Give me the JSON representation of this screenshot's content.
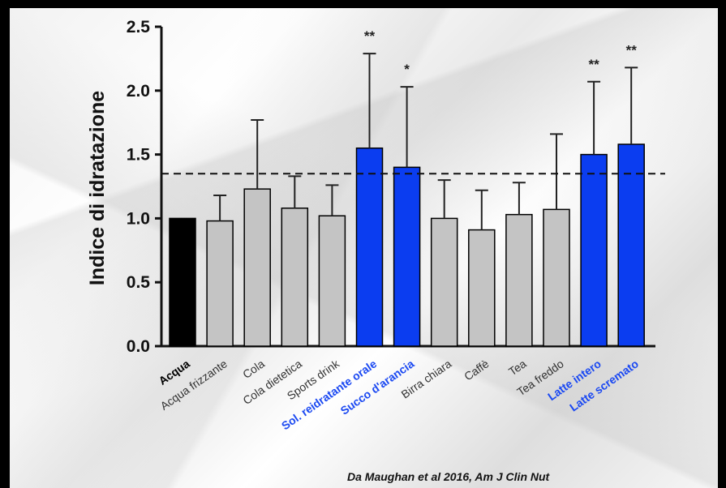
{
  "chart_data": {
    "type": "bar",
    "ylabel": "Indice di idratazione",
    "ylim": [
      0,
      2.5
    ],
    "yticks": [
      "0.0",
      "0.5",
      "1.0",
      "1.5",
      "2.0",
      "2.5"
    ],
    "reference_line": 1.35,
    "categories": [
      "Acqua",
      "Acqua frizzante",
      "Cola",
      "Cola dietetica",
      "Sports drink",
      "Sol. reidratante orale",
      "Succo d'arancia",
      "Birra chiara",
      "Caffè",
      "Tea",
      "Tea freddo",
      "Latte intero",
      "Latte scremato"
    ],
    "values": [
      1.0,
      0.98,
      1.23,
      1.08,
      1.02,
      1.55,
      1.4,
      1.0,
      0.91,
      1.03,
      1.07,
      1.5,
      1.58
    ],
    "error_upper": [
      1.0,
      1.18,
      1.77,
      1.33,
      1.26,
      2.29,
      2.03,
      1.3,
      1.22,
      1.28,
      1.66,
      2.07,
      2.18
    ],
    "significance": [
      "",
      "",
      "",
      "",
      "",
      "**",
      "*",
      "",
      "",
      "",
      "",
      "**",
      "**"
    ],
    "bar_colors": [
      "#000000",
      "#c4c4c4",
      "#c4c4c4",
      "#c4c4c4",
      "#c4c4c4",
      "#0b3df0",
      "#0b3df0",
      "#c4c4c4",
      "#c4c4c4",
      "#c4c4c4",
      "#c4c4c4",
      "#0b3df0",
      "#0b3df0"
    ],
    "label_colors": [
      "#000000",
      "#333333",
      "#333333",
      "#333333",
      "#333333",
      "#1b49f2",
      "#1b49f2",
      "#333333",
      "#333333",
      "#333333",
      "#333333",
      "#1b49f2",
      "#1b49f2"
    ],
    "grid": false
  },
  "source_text": "Da Maughan et al 2016, Am J Clin Nut"
}
